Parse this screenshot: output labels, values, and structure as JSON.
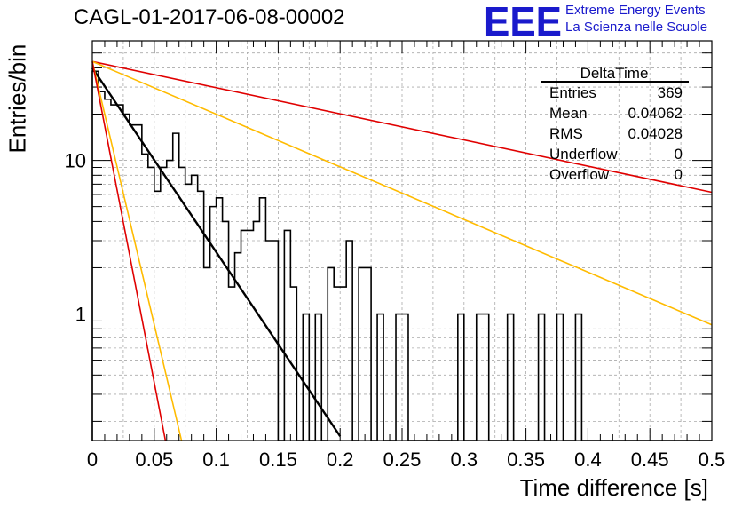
{
  "title": "CAGL-01-2017-06-08-00002",
  "logo": {
    "mark": "EEE",
    "line1": "Extreme Energy Events",
    "line2": "La Scienza nelle Scuole",
    "color": "#1a1acc"
  },
  "stats_box": {
    "name": "DeltaTime",
    "rows": [
      {
        "label": "Entries",
        "value": "369"
      },
      {
        "label": "Mean",
        "value": "0.04062"
      },
      {
        "label": "RMS",
        "value": "0.04028"
      },
      {
        "label": "Underflow",
        "value": "0"
      },
      {
        "label": "Overflow",
        "value": "0"
      }
    ]
  },
  "chart_data": {
    "type": "histogram",
    "title": "CAGL-01-2017-06-08-00002",
    "xlabel": "Time difference [s]",
    "ylabel": "Entries/bin",
    "xlim": [
      0,
      0.5
    ],
    "ylim": [
      0.15,
      60
    ],
    "yscale": "log",
    "grid": true,
    "x_ticks": [
      0,
      0.05,
      0.1,
      0.15,
      0.2,
      0.25,
      0.3,
      0.35,
      0.4,
      0.45,
      0.5
    ],
    "x_tick_labels": [
      "0",
      "0.05",
      "0.1",
      "0.15",
      "0.2",
      "0.25",
      "0.3",
      "0.35",
      "0.4",
      "0.45",
      "0.5"
    ],
    "y_ticks": [
      1,
      10
    ],
    "y_tick_labels": [
      "1",
      "10"
    ],
    "bin_width": 0.005,
    "bin_edges_start": 0,
    "bin_counts": [
      38,
      28,
      25,
      23,
      23,
      20,
      17,
      17,
      11,
      9,
      6.3,
      9,
      10,
      15,
      9,
      7,
      8,
      6.3,
      2,
      5,
      5.7,
      4,
      1.5,
      2.5,
      3.5,
      3.5,
      4,
      5.7,
      3,
      3,
      0,
      3.5,
      1.5,
      0,
      1,
      0,
      1,
      0,
      2,
      1.5,
      1.5,
      3,
      0,
      2,
      2,
      0,
      1,
      0,
      0,
      1,
      1,
      0,
      0,
      0,
      0,
      0,
      0,
      0,
      0,
      1,
      0,
      0,
      1,
      1,
      0,
      0,
      0,
      1,
      0,
      0,
      0,
      0,
      1,
      0,
      0,
      1,
      0,
      0,
      1,
      0,
      0,
      0,
      0,
      0,
      0,
      0,
      0,
      0,
      0,
      0,
      0,
      0,
      0,
      0,
      0,
      0,
      0,
      0,
      0,
      0
    ],
    "series": [
      {
        "kind": "fit",
        "color": "#000000",
        "x": [
          0,
          0.2
        ],
        "y": [
          40,
          0.16
        ]
      },
      {
        "kind": "bound",
        "color": "#e00000",
        "x": [
          0,
          0.5
        ],
        "y": [
          44,
          6.2
        ]
      },
      {
        "kind": "bound",
        "color": "#ffbb00",
        "x": [
          0,
          0.5
        ],
        "y": [
          44,
          0.85
        ]
      },
      {
        "kind": "bound",
        "color": "#ffbb00",
        "x": [
          0,
          0.072
        ],
        "y": [
          44,
          0.15
        ]
      },
      {
        "kind": "bound",
        "color": "#e00000",
        "x": [
          0,
          0.059
        ],
        "y": [
          44,
          0.15
        ]
      }
    ]
  }
}
